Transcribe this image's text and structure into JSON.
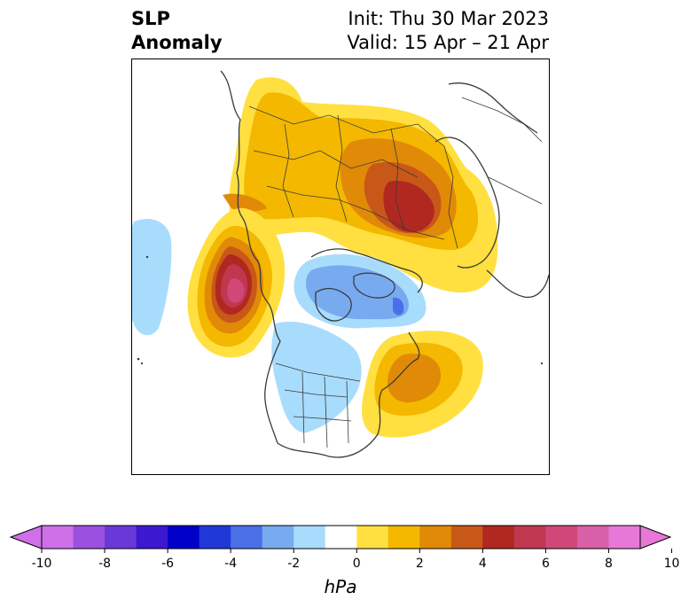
{
  "header": {
    "title_line1": "SLP",
    "title_line2": "Anomaly",
    "init": "Init: Thu 30 Mar 2023",
    "valid": "Valid: 15 Apr – 21 Apr"
  },
  "colorbar": {
    "unit": "hPa",
    "ticks": [
      "-10",
      "-8",
      "-6",
      "-4",
      "-2",
      "0",
      "2",
      "4",
      "6",
      "8",
      "10"
    ],
    "levels": [
      -10,
      -9,
      -8,
      -7,
      -6,
      -5,
      -4,
      -3,
      -2,
      -1,
      1,
      2,
      3,
      4,
      5,
      6,
      7,
      8,
      9,
      10
    ],
    "colors": [
      "#d070e8",
      "#9c50e0",
      "#6a38d8",
      "#3c18d0",
      "#0000c8",
      "#2038d8",
      "#4a70e8",
      "#78aaf0",
      "#a8dcfc",
      "#ffffff",
      "#ffe040",
      "#f4b800",
      "#e08a08",
      "#c85818",
      "#b02820",
      "#c03850",
      "#d04878",
      "#d860a8",
      "#e878d8"
    ],
    "under_color": "#d070e8",
    "over_color": "#e878d8"
  },
  "map": {
    "projection": "north-polar-stereographic",
    "features": [
      "coastlines",
      "country-borders",
      "us-state-borders"
    ],
    "anomaly_centers": [
      {
        "region": "Siberia",
        "sign": "positive",
        "peak_hpa": 7
      },
      {
        "region": "Gulf of Alaska",
        "sign": "positive",
        "peak_hpa": 9
      },
      {
        "region": "Newfoundland / NW Atlantic",
        "sign": "positive",
        "peak_hpa": 4
      },
      {
        "region": "Arctic Ocean / Canadian Arctic",
        "sign": "negative",
        "peak_hpa": -4
      },
      {
        "region": "Central North America",
        "sign": "negative",
        "peak_hpa": -2
      },
      {
        "region": "Central Pacific",
        "sign": "negative",
        "peak_hpa": -2
      }
    ]
  }
}
